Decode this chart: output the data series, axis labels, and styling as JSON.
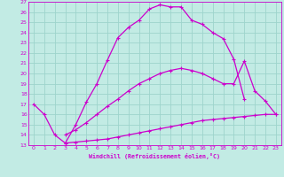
{
  "xlabel": "Windchill (Refroidissement éolien,°C)",
  "bg_color": "#c2ebe4",
  "grid_color": "#9ed4cc",
  "line_color": "#cc00cc",
  "xlim": [
    -0.5,
    23.5
  ],
  "ylim": [
    13,
    27
  ],
  "xticks": [
    0,
    1,
    2,
    3,
    4,
    5,
    6,
    7,
    8,
    9,
    10,
    11,
    12,
    13,
    14,
    15,
    16,
    17,
    18,
    19,
    20,
    21,
    22,
    23
  ],
  "yticks": [
    13,
    14,
    15,
    16,
    17,
    18,
    19,
    20,
    21,
    22,
    23,
    24,
    25,
    26,
    27
  ],
  "line1_x": [
    0,
    1,
    2,
    3,
    4,
    5,
    6,
    7,
    8,
    9,
    10,
    11,
    12,
    13,
    14,
    15,
    16,
    17,
    18,
    19,
    20
  ],
  "line1_y": [
    17,
    16,
    14,
    13.2,
    15.0,
    17.2,
    19.0,
    21.3,
    23.5,
    24.5,
    25.2,
    26.3,
    26.7,
    26.5,
    26.5,
    25.2,
    24.8,
    24.0,
    23.4,
    21.4,
    17.5
  ],
  "line2_x": [
    3,
    4,
    5,
    6,
    7,
    8,
    9,
    10,
    11,
    12,
    13,
    14,
    15,
    16,
    17,
    18,
    19,
    20,
    21,
    22,
    23
  ],
  "line2_y": [
    13.2,
    13.3,
    13.4,
    13.5,
    13.6,
    13.8,
    14.0,
    14.2,
    14.4,
    14.6,
    14.8,
    15.0,
    15.2,
    15.4,
    15.5,
    15.6,
    15.7,
    15.8,
    15.9,
    16.0,
    16.0
  ],
  "line3_x": [
    3,
    4,
    5,
    6,
    7,
    8,
    9,
    10,
    11,
    12,
    13,
    14,
    15,
    16,
    17,
    18,
    19,
    20,
    21,
    22,
    23
  ],
  "line3_y": [
    14.0,
    14.5,
    15.2,
    16.0,
    16.8,
    17.5,
    18.3,
    19.0,
    19.5,
    20.0,
    20.3,
    20.5,
    20.3,
    20.0,
    19.5,
    19.0,
    19.0,
    21.2,
    18.3,
    17.3,
    16.0
  ]
}
